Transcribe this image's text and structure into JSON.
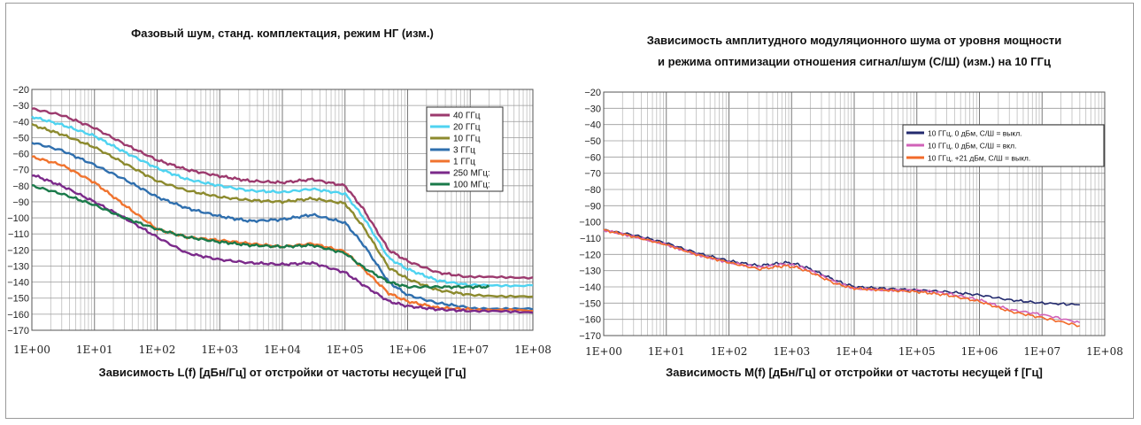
{
  "chart_data": [
    {
      "type": "line",
      "title": "Фазовый шум, станд. комплектация, режим НГ (изм.)",
      "xlabel": "Зависимость L(f) [дБн/Гц] от отстройки от частоты несущей [Гц]",
      "ylabel": "",
      "x_scale": "log",
      "xlim": [
        1,
        100000000
      ],
      "ylim": [
        -170,
        -20
      ],
      "y_ticks": [
        "-20",
        "-30",
        "-40",
        "-50",
        "-60",
        "-70",
        "-80",
        "-90",
        "-100",
        "-110",
        "-120",
        "-130",
        "-140",
        "-150",
        "-160",
        "-170"
      ],
      "x_ticks": [
        "1E+00",
        "1E+01",
        "1E+02",
        "1E+03",
        "1E+04",
        "1E+05",
        "1E+06",
        "1E+07",
        "1E+08"
      ],
      "grid": true,
      "legend_position": "top-right",
      "series": [
        {
          "name": "40 ГГц",
          "color": "#9c3a6e",
          "x": [
            1,
            3,
            10,
            30,
            100,
            300,
            1000,
            3000,
            10000,
            30000,
            100000,
            200000,
            500000,
            1000000,
            3000000,
            10000000,
            100000000
          ],
          "y": [
            -32,
            -36,
            -44,
            -54,
            -64,
            -70,
            -74,
            -77,
            -78,
            -76,
            -80,
            -95,
            -120,
            -127,
            -134,
            -137,
            -137
          ]
        },
        {
          "name": "20 ГГц",
          "color": "#4fd3f0",
          "x": [
            1,
            3,
            10,
            30,
            100,
            300,
            1000,
            3000,
            10000,
            30000,
            100000,
            200000,
            500000,
            1000000,
            3000000,
            10000000,
            100000000
          ],
          "y": [
            -37,
            -42,
            -49,
            -59,
            -69,
            -76,
            -80,
            -83,
            -84,
            -82,
            -85,
            -100,
            -125,
            -132,
            -139,
            -142,
            -142
          ]
        },
        {
          "name": "10 ГГц",
          "color": "#8c8a2e",
          "x": [
            1,
            3,
            10,
            30,
            100,
            300,
            1000,
            3000,
            10000,
            30000,
            100000,
            200000,
            500000,
            1000000,
            3000000,
            10000000,
            100000000
          ],
          "y": [
            -42,
            -48,
            -56,
            -66,
            -77,
            -83,
            -87,
            -89,
            -90,
            -88,
            -91,
            -106,
            -131,
            -138,
            -145,
            -148,
            -149
          ]
        },
        {
          "name": "3 ГГц",
          "color": "#2f6fae",
          "x": [
            1,
            3,
            10,
            30,
            100,
            300,
            1000,
            3000,
            10000,
            30000,
            100000,
            200000,
            500000,
            1000000,
            3000000,
            10000000,
            100000000
          ],
          "y": [
            -53,
            -58,
            -67,
            -76,
            -87,
            -94,
            -99,
            -102,
            -101,
            -98,
            -103,
            -117,
            -140,
            -148,
            -153,
            -156,
            -157
          ]
        },
        {
          "name": "1 ГГц",
          "color": "#f0732e",
          "x": [
            1,
            3,
            10,
            30,
            100,
            300,
            1000,
            3000,
            10000,
            30000,
            100000,
            200000,
            500000,
            1000000,
            3000000,
            10000000,
            100000000
          ],
          "y": [
            -62,
            -67,
            -78,
            -92,
            -107,
            -112,
            -114,
            -116,
            -118,
            -116,
            -121,
            -132,
            -147,
            -152,
            -156,
            -157,
            -158
          ]
        },
        {
          "name": "250 МГц:",
          "color": "#7b2a8a",
          "x": [
            1,
            3,
            10,
            30,
            100,
            300,
            1000,
            3000,
            10000,
            30000,
            100000,
            200000,
            500000,
            1000000,
            3000000,
            10000000,
            100000000
          ],
          "y": [
            -73,
            -80,
            -90,
            -100,
            -112,
            -122,
            -126,
            -128,
            -129,
            -128,
            -134,
            -142,
            -152,
            -155,
            -157,
            -158,
            -159
          ]
        },
        {
          "name": "100 МГц:",
          "color": "#1a7a4a",
          "x": [
            1,
            3,
            10,
            30,
            100,
            300,
            1000,
            3000,
            10000,
            30000,
            100000,
            200000,
            500000,
            1000000,
            3000000,
            10000000,
            20000000
          ],
          "y": [
            -80,
            -85,
            -92,
            -100,
            -107,
            -112,
            -115,
            -117,
            -118,
            -117,
            -122,
            -131,
            -140,
            -143,
            -143,
            -143,
            -143
          ]
        }
      ]
    },
    {
      "type": "line",
      "title": "Зависимость амплитудного модуляционного шума от уровня мощности\nи режима оптимизации отношения сигнал/шум (С/Ш) (изм.) на 10 ГГц",
      "xlabel": "Зависимость M(f) [дБн/Гц] от отстройки от частоты несущей f [Гц]",
      "ylabel": "",
      "x_scale": "log",
      "xlim": [
        1,
        100000000
      ],
      "ylim": [
        -170,
        -20
      ],
      "y_ticks": [
        "-20",
        "-30",
        "-40",
        "-50",
        "-60",
        "-70",
        "-80",
        "-90",
        "-100",
        "-110",
        "-120",
        "-130",
        "-140",
        "-150",
        "-160",
        "-170"
      ],
      "x_ticks": [
        "1E+00",
        "1E+01",
        "1E+02",
        "1E+03",
        "1E+04",
        "1E+05",
        "1E+06",
        "1E+07",
        "1E+08"
      ],
      "grid": true,
      "legend_position": "top-right",
      "series": [
        {
          "name": "10 ГГц, 0 дБм, С/Ш = выкл.",
          "color": "#232a6e",
          "x": [
            1,
            3,
            10,
            30,
            100,
            300,
            500,
            800,
            1200,
            2000,
            5000,
            10000,
            30000,
            100000,
            300000,
            1000000,
            3000000,
            10000000,
            40000000
          ],
          "y": [
            -105,
            -108,
            -113,
            -119,
            -124,
            -127,
            -126,
            -125,
            -126,
            -129,
            -136,
            -140,
            -141,
            -142,
            -143,
            -145,
            -148,
            -150,
            -151
          ]
        },
        {
          "name": "10 ГГц, 0 дБм, С/Ш = вкл.",
          "color": "#d062b8",
          "x": [
            1,
            3,
            10,
            30,
            100,
            300,
            500,
            800,
            1200,
            2000,
            5000,
            10000,
            30000,
            100000,
            300000,
            1000000,
            3000000,
            10000000,
            40000000
          ],
          "y": [
            -105,
            -109,
            -114,
            -120,
            -125,
            -128,
            -127,
            -126,
            -127,
            -130,
            -137,
            -141,
            -142,
            -142,
            -144,
            -148,
            -154,
            -157,
            -162
          ]
        },
        {
          "name": "10 ГГц, +21 дБм, С/Ш = выкл.",
          "color": "#f26a2a",
          "x": [
            1,
            3,
            10,
            30,
            100,
            300,
            500,
            800,
            1200,
            2000,
            5000,
            10000,
            30000,
            100000,
            300000,
            1000000,
            3000000,
            10000000,
            40000000
          ],
          "y": [
            -105,
            -109,
            -114,
            -120,
            -125,
            -129,
            -128,
            -127,
            -128,
            -131,
            -138,
            -141,
            -142,
            -143,
            -145,
            -149,
            -155,
            -159,
            -164
          ]
        }
      ]
    }
  ]
}
